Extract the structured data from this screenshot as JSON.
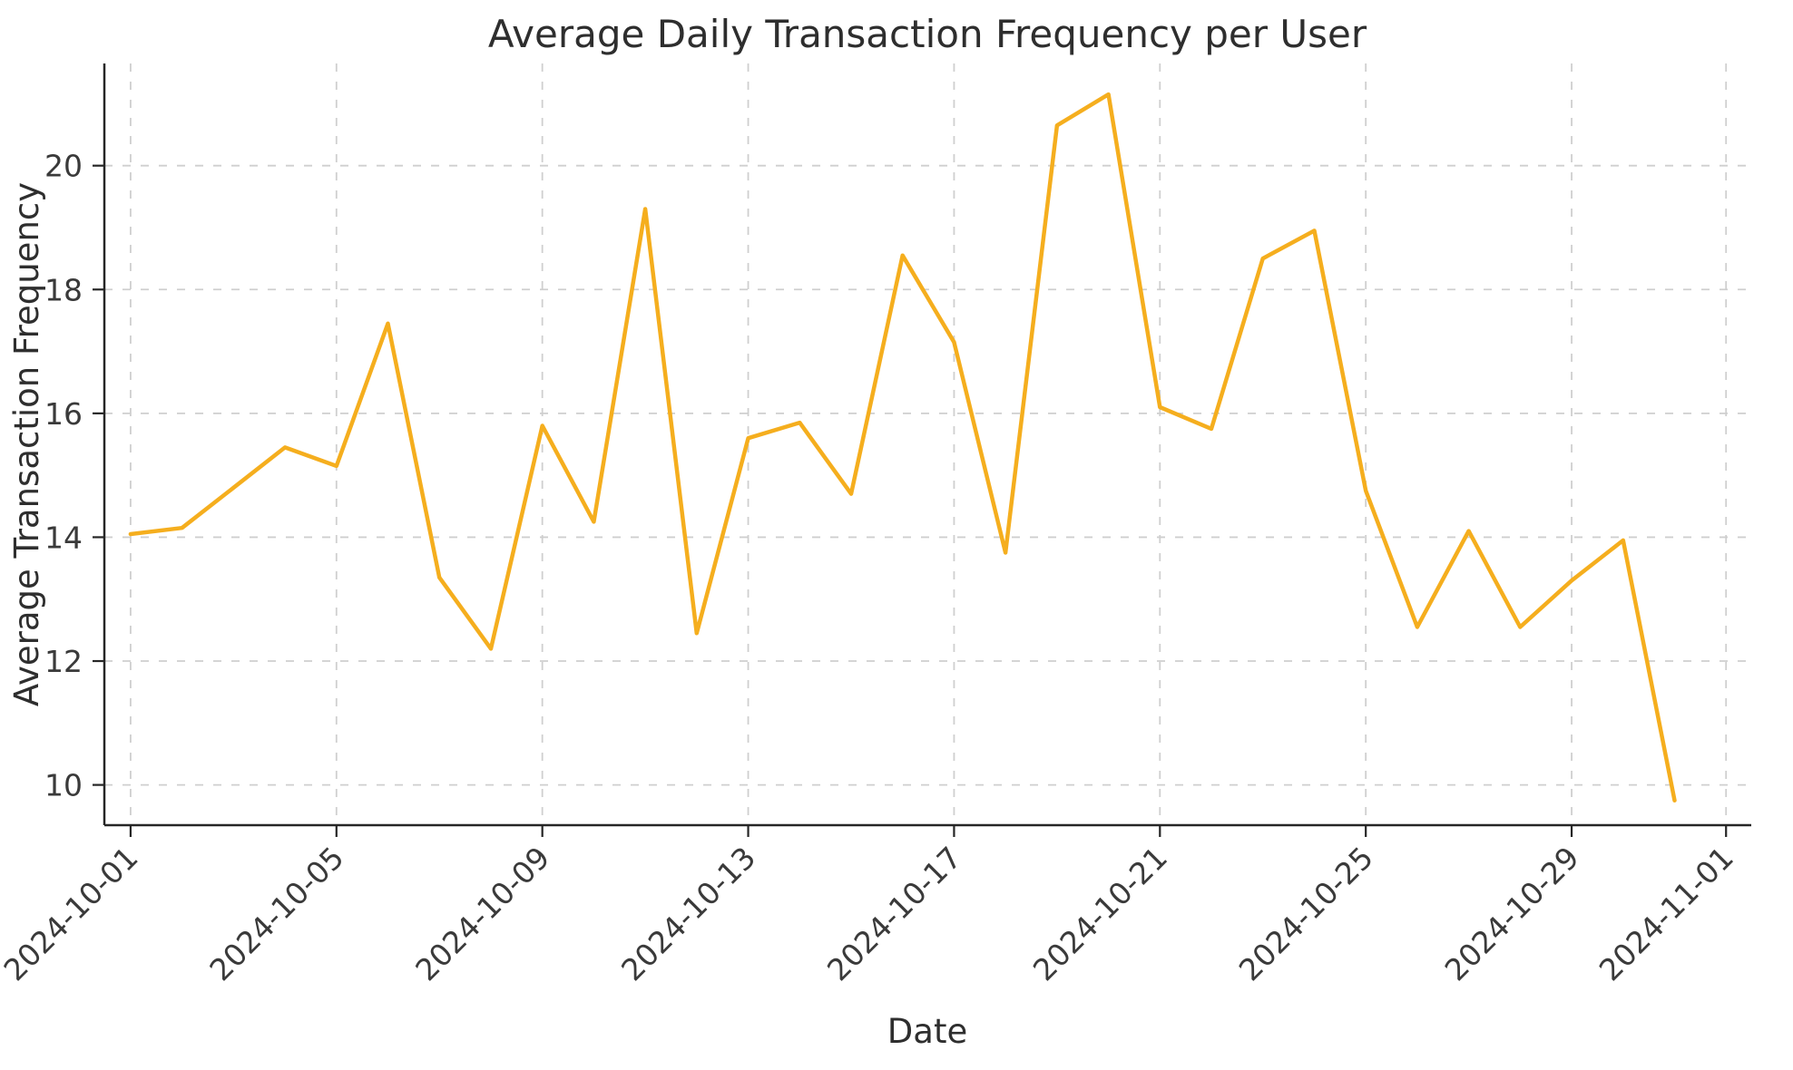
{
  "chart_data": {
    "type": "line",
    "title": "Average Daily Transaction Frequency per User",
    "xlabel": "Date",
    "ylabel": "Average Transaction Frequency",
    "x": [
      "2024-10-01",
      "2024-10-02",
      "2024-10-03",
      "2024-10-04",
      "2024-10-05",
      "2024-10-06",
      "2024-10-07",
      "2024-10-08",
      "2024-10-09",
      "2024-10-10",
      "2024-10-11",
      "2024-10-12",
      "2024-10-13",
      "2024-10-14",
      "2024-10-15",
      "2024-10-16",
      "2024-10-17",
      "2024-10-18",
      "2024-10-19",
      "2024-10-20",
      "2024-10-21",
      "2024-10-22",
      "2024-10-23",
      "2024-10-24",
      "2024-10-25",
      "2024-10-26",
      "2024-10-27",
      "2024-10-28",
      "2024-10-29",
      "2024-10-30",
      "2024-10-31"
    ],
    "values": [
      14.05,
      14.15,
      14.8,
      15.45,
      15.15,
      17.45,
      13.35,
      12.2,
      15.8,
      14.25,
      19.3,
      12.45,
      15.6,
      15.85,
      14.7,
      18.55,
      17.15,
      13.75,
      20.65,
      21.15,
      16.1,
      15.75,
      18.5,
      18.95,
      14.75,
      12.55,
      14.1,
      12.55,
      13.3,
      13.95,
      9.75
    ],
    "x_tick_labels": [
      "2024-10-01",
      "2024-10-05",
      "2024-10-09",
      "2024-10-13",
      "2024-10-17",
      "2024-10-21",
      "2024-10-25",
      "2024-10-29",
      "2024-11-01"
    ],
    "y_ticks": [
      10,
      12,
      14,
      16,
      18,
      20
    ],
    "ylim": [
      9.35,
      21.65
    ],
    "xlim_days": [
      -0.51,
      31.49
    ],
    "line_color": "#F5AE1E",
    "grid_style": "dashed",
    "background_color": "#ffffff",
    "legend": "none"
  }
}
